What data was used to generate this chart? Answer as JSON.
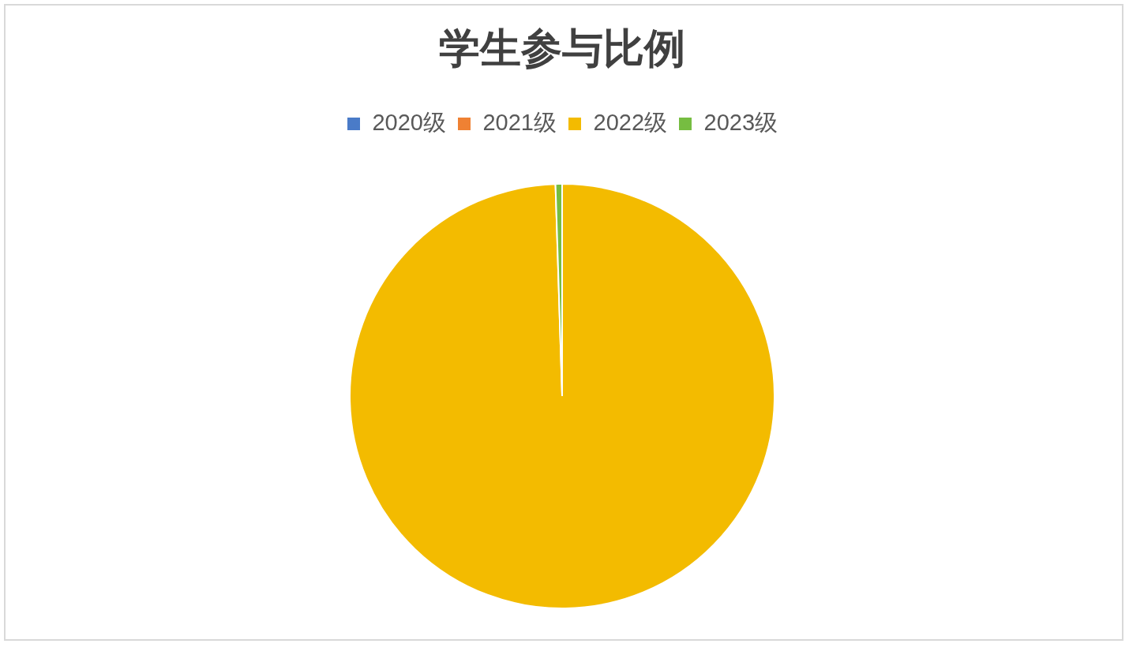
{
  "chart_data": {
    "type": "pie",
    "title": "学生参与比例",
    "categories": [
      "2020级",
      "2021级",
      "2022级",
      "2023级"
    ],
    "values": [
      0,
      0,
      99.5,
      0.5
    ],
    "colors": [
      "#4a7bc8",
      "#ef8133",
      "#f3bb00",
      "#76bd41"
    ],
    "legend": "top"
  }
}
